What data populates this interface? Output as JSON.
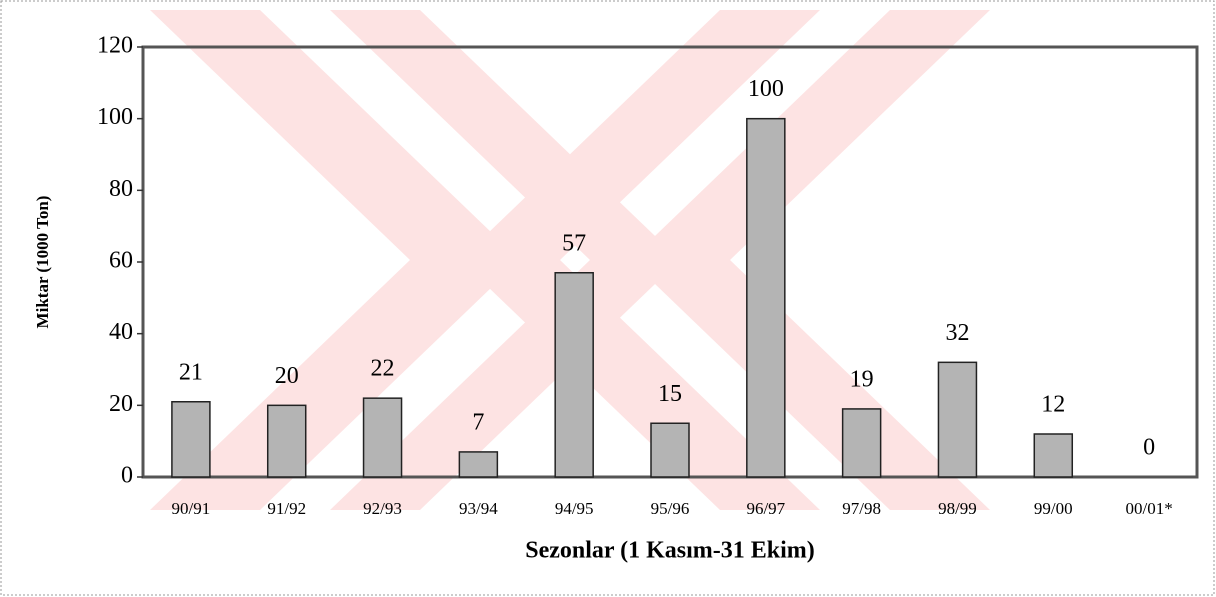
{
  "chart_data": {
    "type": "bar",
    "x_label": "Sezonlar (1 Kasım-31 Ekim)",
    "y_label": "Miktar (1000 Ton)",
    "categories": [
      "90/91",
      "91/92",
      "92/93",
      "93/94",
      "94/95",
      "95/96",
      "96/97",
      "97/98",
      "98/99",
      "99/00",
      "00/01*"
    ],
    "values": [
      21,
      20,
      22,
      7,
      57,
      15,
      100,
      19,
      32,
      12,
      0
    ],
    "color": "#b4b4b4",
    "ylim": [
      0,
      120
    ],
    "yticks": [
      0,
      20,
      40,
      60,
      80,
      100,
      120
    ],
    "grid": false
  }
}
